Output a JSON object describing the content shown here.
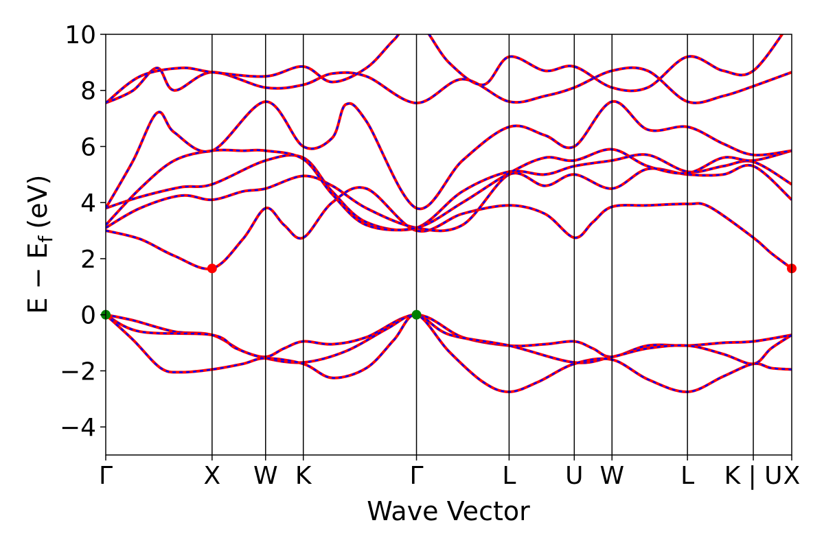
{
  "chart_data": {
    "type": "line",
    "title": "",
    "xlabel": "Wave Vector",
    "ylabel": "E − E",
    "ylabel_subscript": "f",
    "ylabel_unit": "(eV)",
    "ylim": [
      -5,
      10
    ],
    "yticks": [
      -4,
      -2,
      0,
      2,
      4,
      6,
      8,
      10
    ],
    "ytick_labels": [
      "−4",
      "−2",
      "0",
      "2",
      "4",
      "6",
      "8",
      "10"
    ],
    "xlim": [
      0,
      1
    ],
    "kpoints": [
      {
        "label": "Γ",
        "x": 0.0
      },
      {
        "label": "X",
        "x": 0.155
      },
      {
        "label": "W",
        "x": 0.233
      },
      {
        "label": "K",
        "x": 0.288
      },
      {
        "label": "Γ",
        "x": 0.453
      },
      {
        "label": "L",
        "x": 0.588
      },
      {
        "label": "U",
        "x": 0.683
      },
      {
        "label": "W",
        "x": 0.738
      },
      {
        "label": "L",
        "x": 0.848
      },
      {
        "label": "K | U",
        "x": 0.944
      },
      {
        "label": "X",
        "x": 1.0
      }
    ],
    "grid": false,
    "line_colors": {
      "primary": "#ff0000",
      "overlay": "#0000ff"
    },
    "markers": [
      {
        "x": 0.155,
        "y": 1.65,
        "color": "#ff0000"
      },
      {
        "x": 1.0,
        "y": 1.65,
        "color": "#ff0000"
      },
      {
        "x": 0.0,
        "y": 0.0,
        "color": "#008000"
      },
      {
        "x": 0.453,
        "y": 0.0,
        "color": "#008000"
      }
    ],
    "series": [
      {
        "values": [
          [
            0,
            0
          ],
          [
            0.04,
            -0.2
          ],
          [
            0.1,
            -0.6
          ],
          [
            0.155,
            -0.72
          ],
          [
            0.2,
            -1.3
          ],
          [
            0.233,
            -1.5
          ],
          [
            0.26,
            -1.2
          ],
          [
            0.288,
            -0.95
          ],
          [
            0.33,
            -1.05
          ],
          [
            0.38,
            -0.8
          ],
          [
            0.453,
            0
          ],
          [
            0.52,
            -0.8
          ],
          [
            0.588,
            -1.1
          ],
          [
            0.64,
            -1.05
          ],
          [
            0.683,
            -0.95
          ],
          [
            0.71,
            -1.2
          ],
          [
            0.738,
            -1.5
          ],
          [
            0.79,
            -1.1
          ],
          [
            0.848,
            -1.1
          ],
          [
            0.9,
            -1.0
          ],
          [
            0.944,
            -0.95
          ],
          [
            1.0,
            -0.72
          ]
        ]
      },
      {
        "values": [
          [
            0,
            0
          ],
          [
            0.05,
            -0.6
          ],
          [
            0.155,
            -0.72
          ],
          [
            0.19,
            -1.2
          ],
          [
            0.233,
            -1.55
          ],
          [
            0.288,
            -1.7
          ],
          [
            0.35,
            -1.3
          ],
          [
            0.41,
            -0.5
          ],
          [
            0.453,
            0
          ],
          [
            0.5,
            -0.7
          ],
          [
            0.588,
            -1.1
          ],
          [
            0.683,
            -1.7
          ],
          [
            0.738,
            -1.5
          ],
          [
            0.79,
            -1.2
          ],
          [
            0.848,
            -1.1
          ],
          [
            0.9,
            -1.4
          ],
          [
            0.944,
            -1.75
          ],
          [
            0.97,
            -1.2
          ],
          [
            1.0,
            -0.72
          ]
        ]
      },
      {
        "values": [
          [
            0,
            0
          ],
          [
            0.04,
            -0.9
          ],
          [
            0.08,
            -1.9
          ],
          [
            0.11,
            -2.05
          ],
          [
            0.155,
            -1.95
          ],
          [
            0.2,
            -1.75
          ],
          [
            0.233,
            -1.55
          ],
          [
            0.288,
            -1.75
          ],
          [
            0.33,
            -2.25
          ],
          [
            0.38,
            -1.9
          ],
          [
            0.42,
            -0.9
          ],
          [
            0.453,
            0
          ],
          [
            0.5,
            -1.3
          ],
          [
            0.55,
            -2.4
          ],
          [
            0.588,
            -2.75
          ],
          [
            0.63,
            -2.4
          ],
          [
            0.683,
            -1.75
          ],
          [
            0.738,
            -1.6
          ],
          [
            0.79,
            -2.3
          ],
          [
            0.848,
            -2.75
          ],
          [
            0.9,
            -2.2
          ],
          [
            0.944,
            -1.75
          ],
          [
            0.97,
            -1.9
          ],
          [
            1.0,
            -1.95
          ]
        ]
      },
      {
        "values": [
          [
            0,
            3.0
          ],
          [
            0.05,
            2.7
          ],
          [
            0.1,
            2.1
          ],
          [
            0.155,
            1.65
          ],
          [
            0.2,
            2.7
          ],
          [
            0.233,
            3.8
          ],
          [
            0.26,
            3.2
          ],
          [
            0.288,
            2.75
          ],
          [
            0.33,
            4.0
          ],
          [
            0.38,
            4.5
          ],
          [
            0.453,
            3.0
          ],
          [
            0.52,
            3.6
          ],
          [
            0.588,
            3.9
          ],
          [
            0.64,
            3.6
          ],
          [
            0.683,
            2.75
          ],
          [
            0.71,
            3.3
          ],
          [
            0.738,
            3.85
          ],
          [
            0.79,
            3.9
          ],
          [
            0.848,
            3.95
          ],
          [
            0.88,
            3.85
          ],
          [
            0.944,
            2.75
          ],
          [
            0.97,
            2.2
          ],
          [
            1.0,
            1.65
          ]
        ]
      },
      {
        "values": [
          [
            0,
            3.1
          ],
          [
            0.05,
            3.8
          ],
          [
            0.11,
            4.25
          ],
          [
            0.155,
            4.1
          ],
          [
            0.2,
            4.4
          ],
          [
            0.233,
            4.5
          ],
          [
            0.288,
            4.95
          ],
          [
            0.33,
            4.6
          ],
          [
            0.38,
            3.8
          ],
          [
            0.453,
            3.1
          ],
          [
            0.52,
            3.2
          ],
          [
            0.588,
            5.0
          ],
          [
            0.64,
            4.6
          ],
          [
            0.683,
            5.0
          ],
          [
            0.738,
            4.5
          ],
          [
            0.79,
            5.2
          ],
          [
            0.848,
            5.0
          ],
          [
            0.9,
            5.0
          ],
          [
            0.944,
            5.3
          ],
          [
            1.0,
            4.1
          ]
        ]
      },
      {
        "values": [
          [
            0,
            3.8
          ],
          [
            0.05,
            4.2
          ],
          [
            0.11,
            4.55
          ],
          [
            0.155,
            4.65
          ],
          [
            0.233,
            5.5
          ],
          [
            0.288,
            5.6
          ],
          [
            0.33,
            4.4
          ],
          [
            0.38,
            3.3
          ],
          [
            0.453,
            3.1
          ],
          [
            0.52,
            4.4
          ],
          [
            0.588,
            5.1
          ],
          [
            0.64,
            5.0
          ],
          [
            0.683,
            5.3
          ],
          [
            0.738,
            5.5
          ],
          [
            0.79,
            5.7
          ],
          [
            0.848,
            5.1
          ],
          [
            0.9,
            5.3
          ],
          [
            0.944,
            5.45
          ],
          [
            1.0,
            4.65
          ]
        ]
      },
      {
        "values": [
          [
            0,
            3.2
          ],
          [
            0.05,
            4.5
          ],
          [
            0.1,
            5.5
          ],
          [
            0.155,
            5.85
          ],
          [
            0.2,
            5.85
          ],
          [
            0.233,
            5.85
          ],
          [
            0.288,
            5.55
          ],
          [
            0.33,
            4.3
          ],
          [
            0.38,
            3.2
          ],
          [
            0.453,
            3.1
          ],
          [
            0.52,
            4.0
          ],
          [
            0.588,
            5.05
          ],
          [
            0.64,
            5.6
          ],
          [
            0.683,
            5.5
          ],
          [
            0.738,
            5.9
          ],
          [
            0.79,
            5.3
          ],
          [
            0.848,
            5.05
          ],
          [
            0.9,
            5.6
          ],
          [
            0.944,
            5.5
          ],
          [
            1.0,
            5.85
          ]
        ]
      },
      {
        "values": [
          [
            0,
            3.8
          ],
          [
            0.04,
            5.5
          ],
          [
            0.075,
            7.2
          ],
          [
            0.1,
            6.5
          ],
          [
            0.155,
            5.85
          ],
          [
            0.233,
            7.6
          ],
          [
            0.288,
            6.0
          ],
          [
            0.33,
            6.3
          ],
          [
            0.35,
            7.5
          ],
          [
            0.38,
            6.9
          ],
          [
            0.453,
            3.8
          ],
          [
            0.52,
            5.5
          ],
          [
            0.588,
            6.7
          ],
          [
            0.64,
            6.4
          ],
          [
            0.683,
            6.0
          ],
          [
            0.738,
            7.6
          ],
          [
            0.79,
            6.6
          ],
          [
            0.848,
            6.7
          ],
          [
            0.9,
            6.1
          ],
          [
            0.944,
            5.7
          ],
          [
            1.0,
            5.85
          ]
        ]
      },
      {
        "values": [
          [
            0,
            7.55
          ],
          [
            0.04,
            8.0
          ],
          [
            0.075,
            8.8
          ],
          [
            0.1,
            8.0
          ],
          [
            0.155,
            8.65
          ],
          [
            0.233,
            8.1
          ],
          [
            0.288,
            8.2
          ],
          [
            0.33,
            8.6
          ],
          [
            0.38,
            8.5
          ],
          [
            0.453,
            7.55
          ],
          [
            0.52,
            8.4
          ],
          [
            0.588,
            7.6
          ],
          [
            0.64,
            7.8
          ],
          [
            0.683,
            8.1
          ],
          [
            0.738,
            8.7
          ],
          [
            0.79,
            8.7
          ],
          [
            0.848,
            7.6
          ],
          [
            0.9,
            7.8
          ],
          [
            0.944,
            8.15
          ],
          [
            1.0,
            8.65
          ]
        ]
      },
      {
        "values": [
          [
            0,
            7.55
          ],
          [
            0.05,
            8.5
          ],
          [
            0.11,
            8.8
          ],
          [
            0.155,
            8.65
          ],
          [
            0.233,
            8.5
          ],
          [
            0.288,
            8.85
          ],
          [
            0.33,
            8.3
          ],
          [
            0.38,
            8.8
          ],
          [
            0.42,
            9.8
          ],
          [
            0.453,
            10.5
          ],
          [
            0.5,
            9.0
          ],
          [
            0.55,
            8.2
          ],
          [
            0.588,
            9.2
          ],
          [
            0.64,
            8.7
          ],
          [
            0.683,
            8.85
          ],
          [
            0.738,
            8.1
          ],
          [
            0.79,
            8.1
          ],
          [
            0.848,
            9.2
          ],
          [
            0.9,
            8.7
          ],
          [
            0.944,
            8.7
          ],
          [
            1.0,
            10.5
          ]
        ]
      }
    ]
  }
}
